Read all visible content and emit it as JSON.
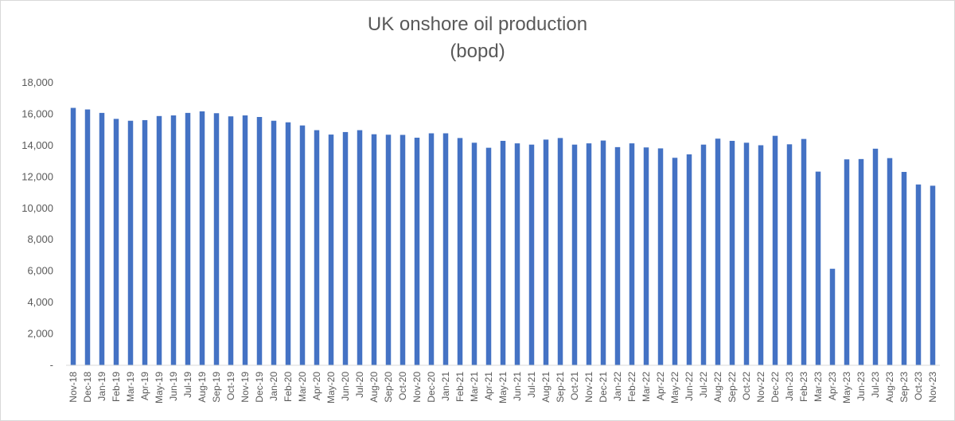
{
  "chart_data": {
    "type": "bar",
    "title": "UK onshore oil production",
    "subtitle": "(bopd)",
    "xlabel": "",
    "ylabel": "",
    "ylim": [
      0,
      18000
    ],
    "yticks": [
      "-",
      "2,000",
      "4,000",
      "6,000",
      "8,000",
      "10,000",
      "12,000",
      "14,000",
      "16,000",
      "18,000"
    ],
    "grid": false,
    "legend": "none",
    "bar_color": "#4472c4",
    "categories": [
      "Nov-18",
      "Dec-18",
      "Jan-19",
      "Feb-19",
      "Mar-19",
      "Apr-19",
      "May-19",
      "Jun-19",
      "Jul-19",
      "Aug-19",
      "Sep-19",
      "Oct-19",
      "Nov-19",
      "Dec-19",
      "Jan-20",
      "Feb-20",
      "Mar-20",
      "Apr-20",
      "May-20",
      "Jun-20",
      "Jul-20",
      "Aug-20",
      "Sep-20",
      "Oct-20",
      "Nov-20",
      "Dec-20",
      "Jan-21",
      "Feb-21",
      "Mar-21",
      "Apr-21",
      "May-21",
      "Jun-21",
      "Jul-21",
      "Aug-21",
      "Sep-21",
      "Oct-21",
      "Nov-21",
      "Dec-21",
      "Jan-22",
      "Feb-22",
      "Mar-22",
      "Apr-22",
      "May-22",
      "Jun-22",
      "Jul-22",
      "Aug-22",
      "Sep-22",
      "Oct-22",
      "Nov-22",
      "Dec-22",
      "Jan-23",
      "Feb-23",
      "Mar-23",
      "Apr-23",
      "May-23",
      "Jun-23",
      "Jul-23",
      "Aug-23",
      "Sep-23",
      "Oct-23",
      "Nov-23"
    ],
    "values": [
      16400,
      16300,
      16080,
      15700,
      15580,
      15620,
      15880,
      15920,
      16080,
      16180,
      16060,
      15860,
      15920,
      15820,
      15580,
      15480,
      15280,
      14980,
      14700,
      14860,
      14980,
      14720,
      14690,
      14680,
      14500,
      14780,
      14780,
      14480,
      14180,
      13860,
      14300,
      14140,
      14060,
      14380,
      14480,
      14060,
      14140,
      14320,
      13900,
      14140,
      13880,
      13820,
      13220,
      13440,
      14060,
      14440,
      14300,
      14180,
      14020,
      14620,
      14080,
      14420,
      12340,
      6150,
      13120,
      13140,
      13800,
      13200,
      12320,
      11520,
      11440
    ]
  }
}
